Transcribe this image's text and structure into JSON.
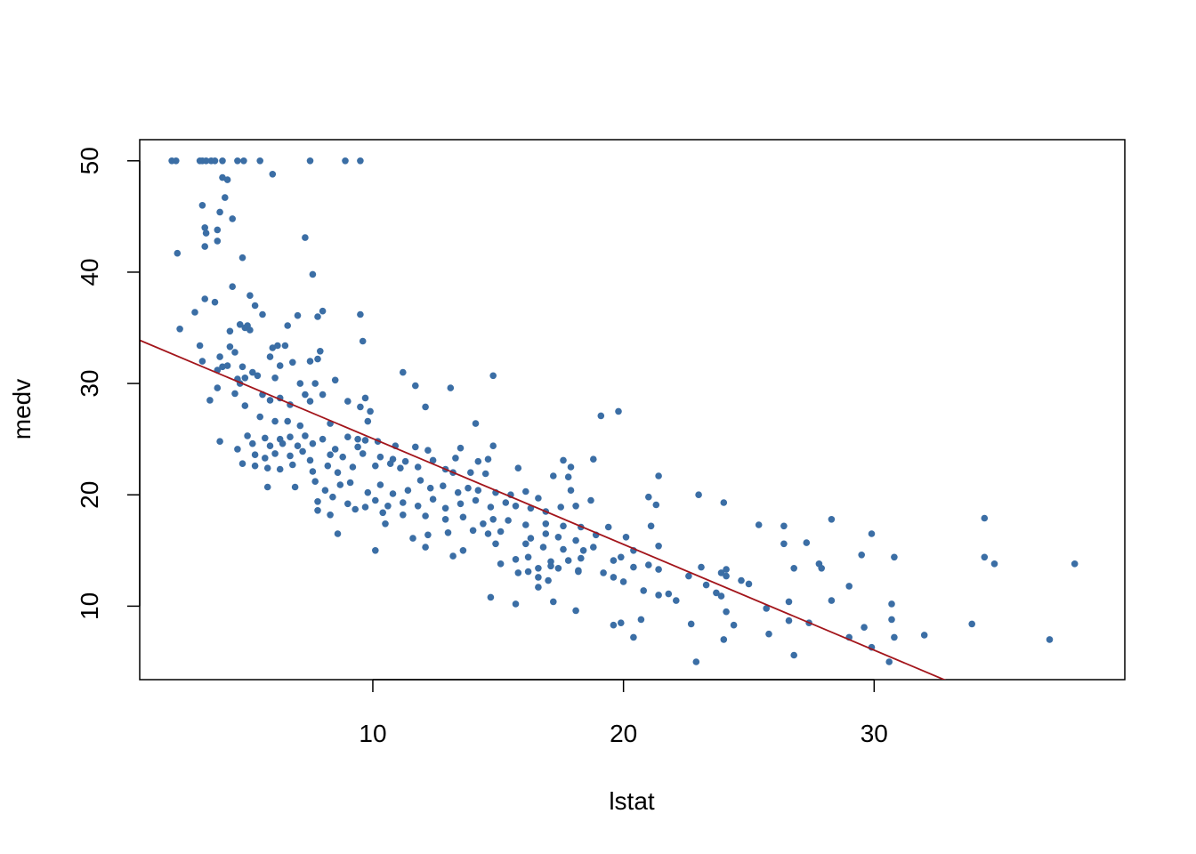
{
  "chart_data": {
    "type": "scatter",
    "title": "",
    "xlabel": "lstat",
    "ylabel": "medv",
    "xlim": [
      0.7,
      40
    ],
    "ylim": [
      3.4,
      51.9
    ],
    "xticks": [
      10,
      20,
      30
    ],
    "yticks": [
      10,
      20,
      30,
      40,
      50
    ],
    "grid": false,
    "point_color": "#3b6ea5",
    "line_color": "#a3151b",
    "fit_line": {
      "intercept": 34.55,
      "slope": -0.95
    },
    "points": [
      [
        1.98,
        50
      ],
      [
        2.15,
        50
      ],
      [
        3.1,
        50
      ],
      [
        3.2,
        50
      ],
      [
        3.35,
        50
      ],
      [
        3.55,
        50
      ],
      [
        3.7,
        50
      ],
      [
        4.0,
        50
      ],
      [
        4.6,
        50
      ],
      [
        4.85,
        50
      ],
      [
        5.5,
        50
      ],
      [
        7.5,
        50
      ],
      [
        8.9,
        50
      ],
      [
        9.5,
        50
      ],
      [
        6.0,
        48.8
      ],
      [
        4.0,
        48.5
      ],
      [
        4.2,
        48.3
      ],
      [
        4.1,
        46.7
      ],
      [
        3.2,
        46.0
      ],
      [
        3.9,
        45.4
      ],
      [
        4.4,
        44.8
      ],
      [
        3.3,
        44.0
      ],
      [
        3.35,
        43.5
      ],
      [
        3.8,
        43.8
      ],
      [
        3.8,
        42.8
      ],
      [
        3.3,
        42.3
      ],
      [
        7.3,
        43.1
      ],
      [
        2.2,
        41.7
      ],
      [
        4.8,
        41.3
      ],
      [
        7.6,
        39.8
      ],
      [
        4.4,
        38.7
      ],
      [
        5.1,
        37.9
      ],
      [
        3.3,
        37.6
      ],
      [
        3.7,
        37.3
      ],
      [
        5.3,
        37.0
      ],
      [
        2.9,
        36.4
      ],
      [
        5.6,
        36.2
      ],
      [
        7.0,
        36.1
      ],
      [
        8.0,
        36.5
      ],
      [
        7.8,
        36.0
      ],
      [
        9.5,
        36.2
      ],
      [
        2.3,
        34.9
      ],
      [
        4.7,
        35.3
      ],
      [
        5.0,
        35.2
      ],
      [
        6.6,
        35.2
      ],
      [
        4.9,
        35.0
      ],
      [
        5.1,
        34.8
      ],
      [
        4.3,
        34.7
      ],
      [
        3.1,
        33.4
      ],
      [
        4.3,
        33.3
      ],
      [
        6.0,
        33.2
      ],
      [
        6.2,
        33.4
      ],
      [
        6.5,
        33.4
      ],
      [
        9.6,
        33.8
      ],
      [
        4.5,
        32.8
      ],
      [
        7.9,
        32.9
      ],
      [
        3.9,
        32.4
      ],
      [
        5.9,
        32.4
      ],
      [
        7.5,
        32.0
      ],
      [
        7.8,
        32.2
      ],
      [
        3.2,
        32.0
      ],
      [
        4.0,
        31.5
      ],
      [
        4.2,
        31.6
      ],
      [
        4.8,
        31.5
      ],
      [
        6.3,
        31.6
      ],
      [
        6.8,
        31.9
      ],
      [
        5.2,
        31.0
      ],
      [
        3.8,
        31.2
      ],
      [
        4.6,
        30.4
      ],
      [
        4.7,
        30.0
      ],
      [
        4.9,
        30.5
      ],
      [
        5.4,
        30.7
      ],
      [
        6.1,
        30.5
      ],
      [
        7.1,
        30.0
      ],
      [
        7.7,
        30.0
      ],
      [
        8.5,
        30.3
      ],
      [
        11.2,
        31.0
      ],
      [
        11.7,
        29.8
      ],
      [
        14.8,
        30.7
      ],
      [
        13.1,
        29.6
      ],
      [
        3.8,
        29.6
      ],
      [
        4.5,
        29.1
      ],
      [
        5.6,
        29.0
      ],
      [
        6.3,
        28.7
      ],
      [
        7.3,
        29.0
      ],
      [
        8.0,
        29.0
      ],
      [
        3.5,
        28.5
      ],
      [
        4.9,
        28.0
      ],
      [
        5.9,
        28.5
      ],
      [
        6.7,
        28.1
      ],
      [
        7.5,
        28.4
      ],
      [
        9.0,
        28.4
      ],
      [
        9.7,
        28.7
      ],
      [
        9.5,
        27.9
      ],
      [
        9.9,
        27.5
      ],
      [
        12.1,
        27.9
      ],
      [
        19.1,
        27.1
      ],
      [
        19.8,
        27.5
      ],
      [
        5.5,
        27.0
      ],
      [
        6.1,
        26.6
      ],
      [
        6.6,
        26.6
      ],
      [
        7.1,
        26.2
      ],
      [
        8.3,
        26.4
      ],
      [
        9.8,
        26.6
      ],
      [
        14.1,
        26.4
      ],
      [
        5.0,
        25.3
      ],
      [
        5.7,
        25.1
      ],
      [
        6.3,
        25.0
      ],
      [
        6.7,
        25.2
      ],
      [
        7.3,
        25.3
      ],
      [
        8.0,
        25.0
      ],
      [
        9.0,
        25.2
      ],
      [
        9.4,
        25.0
      ],
      [
        9.7,
        24.9
      ],
      [
        3.9,
        24.8
      ],
      [
        4.6,
        24.1
      ],
      [
        5.2,
        24.6
      ],
      [
        5.9,
        24.4
      ],
      [
        6.4,
        24.6
      ],
      [
        7.0,
        24.4
      ],
      [
        7.6,
        24.6
      ],
      [
        8.5,
        24.1
      ],
      [
        9.4,
        24.3
      ],
      [
        10.2,
        24.8
      ],
      [
        10.9,
        24.4
      ],
      [
        11.7,
        24.3
      ],
      [
        12.2,
        24.0
      ],
      [
        13.5,
        24.2
      ],
      [
        14.8,
        24.4
      ],
      [
        5.3,
        23.6
      ],
      [
        5.7,
        23.3
      ],
      [
        6.1,
        23.7
      ],
      [
        6.7,
        23.5
      ],
      [
        7.2,
        23.9
      ],
      [
        7.5,
        23.1
      ],
      [
        8.3,
        23.6
      ],
      [
        8.8,
        23.4
      ],
      [
        9.6,
        23.7
      ],
      [
        10.3,
        23.4
      ],
      [
        10.8,
        23.2
      ],
      [
        11.3,
        23.0
      ],
      [
        12.4,
        23.1
      ],
      [
        13.3,
        23.3
      ],
      [
        14.2,
        23.0
      ],
      [
        14.6,
        23.2
      ],
      [
        17.6,
        23.1
      ],
      [
        18.8,
        23.2
      ],
      [
        4.8,
        22.8
      ],
      [
        5.3,
        22.6
      ],
      [
        5.8,
        22.4
      ],
      [
        6.3,
        22.3
      ],
      [
        6.8,
        22.7
      ],
      [
        7.6,
        22.1
      ],
      [
        8.2,
        22.6
      ],
      [
        8.6,
        22.0
      ],
      [
        9.2,
        22.5
      ],
      [
        10.1,
        22.6
      ],
      [
        10.7,
        22.8
      ],
      [
        11.1,
        22.4
      ],
      [
        11.8,
        22.5
      ],
      [
        12.9,
        22.3
      ],
      [
        13.2,
        22.0
      ],
      [
        13.9,
        22.0
      ],
      [
        14.5,
        21.9
      ],
      [
        15.8,
        22.4
      ],
      [
        17.2,
        21.7
      ],
      [
        17.9,
        22.5
      ],
      [
        21.4,
        21.7
      ],
      [
        5.8,
        20.7
      ],
      [
        6.9,
        20.7
      ],
      [
        7.7,
        21.2
      ],
      [
        8.1,
        20.4
      ],
      [
        8.7,
        20.9
      ],
      [
        9.1,
        21.1
      ],
      [
        9.8,
        20.2
      ],
      [
        10.3,
        20.9
      ],
      [
        10.8,
        20.1
      ],
      [
        11.4,
        20.4
      ],
      [
        11.9,
        21.3
      ],
      [
        12.3,
        20.6
      ],
      [
        12.8,
        20.8
      ],
      [
        13.4,
        20.2
      ],
      [
        13.8,
        20.6
      ],
      [
        14.2,
        20.4
      ],
      [
        14.9,
        20.2
      ],
      [
        15.5,
        20.0
      ],
      [
        16.1,
        20.3
      ],
      [
        16.6,
        19.7
      ],
      [
        17.8,
        21.6
      ],
      [
        17.9,
        20.4
      ],
      [
        21.0,
        19.8
      ],
      [
        23.0,
        20.0
      ],
      [
        7.8,
        19.4
      ],
      [
        8.4,
        19.8
      ],
      [
        9.0,
        19.2
      ],
      [
        9.7,
        18.9
      ],
      [
        10.1,
        19.5
      ],
      [
        10.6,
        19.0
      ],
      [
        11.2,
        19.3
      ],
      [
        11.8,
        19.0
      ],
      [
        12.4,
        19.6
      ],
      [
        12.9,
        18.8
      ],
      [
        13.5,
        19.2
      ],
      [
        14.1,
        19.5
      ],
      [
        14.7,
        18.9
      ],
      [
        15.3,
        19.3
      ],
      [
        15.7,
        19.0
      ],
      [
        16.3,
        18.8
      ],
      [
        16.9,
        18.5
      ],
      [
        17.5,
        18.9
      ],
      [
        18.1,
        19.0
      ],
      [
        18.7,
        19.5
      ],
      [
        21.3,
        19.1
      ],
      [
        24.0,
        19.3
      ],
      [
        7.8,
        18.6
      ],
      [
        8.3,
        18.2
      ],
      [
        9.3,
        18.7
      ],
      [
        10.4,
        18.4
      ],
      [
        11.2,
        18.2
      ],
      [
        12.1,
        18.1
      ],
      [
        12.9,
        17.8
      ],
      [
        13.6,
        18.0
      ],
      [
        14.4,
        17.4
      ],
      [
        14.8,
        17.8
      ],
      [
        15.4,
        17.7
      ],
      [
        16.1,
        17.3
      ],
      [
        16.9,
        17.4
      ],
      [
        17.6,
        17.2
      ],
      [
        18.3,
        17.1
      ],
      [
        19.4,
        17.1
      ],
      [
        21.1,
        17.2
      ],
      [
        25.4,
        17.3
      ],
      [
        26.4,
        17.2
      ],
      [
        28.3,
        17.8
      ],
      [
        34.4,
        17.9
      ],
      [
        8.6,
        16.5
      ],
      [
        10.5,
        17.4
      ],
      [
        11.6,
        16.1
      ],
      [
        12.2,
        16.4
      ],
      [
        13.0,
        16.6
      ],
      [
        14.0,
        16.8
      ],
      [
        14.6,
        16.5
      ],
      [
        15.1,
        16.7
      ],
      [
        16.3,
        16.1
      ],
      [
        16.9,
        16.5
      ],
      [
        17.4,
        16.2
      ],
      [
        18.1,
        15.9
      ],
      [
        18.9,
        16.4
      ],
      [
        20.1,
        16.2
      ],
      [
        29.9,
        16.5
      ],
      [
        10.1,
        15.0
      ],
      [
        12.1,
        15.3
      ],
      [
        13.6,
        15.0
      ],
      [
        14.9,
        15.6
      ],
      [
        16.1,
        15.6
      ],
      [
        16.8,
        15.3
      ],
      [
        17.6,
        15.1
      ],
      [
        18.4,
        15.0
      ],
      [
        18.8,
        15.3
      ],
      [
        20.4,
        15.0
      ],
      [
        21.4,
        15.4
      ],
      [
        26.4,
        15.6
      ],
      [
        27.3,
        15.7
      ],
      [
        13.2,
        14.5
      ],
      [
        15.7,
        14.2
      ],
      [
        16.2,
        14.4
      ],
      [
        17.1,
        14.0
      ],
      [
        17.8,
        14.1
      ],
      [
        18.3,
        14.3
      ],
      [
        19.6,
        14.1
      ],
      [
        19.9,
        14.4
      ],
      [
        29.5,
        14.6
      ],
      [
        30.8,
        14.4
      ],
      [
        34.4,
        14.4
      ],
      [
        15.1,
        13.8
      ],
      [
        16.2,
        13.1
      ],
      [
        16.6,
        13.4
      ],
      [
        17.1,
        13.6
      ],
      [
        17.4,
        13.4
      ],
      [
        18.2,
        13.2
      ],
      [
        19.2,
        13.0
      ],
      [
        19.6,
        12.6
      ],
      [
        20.4,
        13.5
      ],
      [
        21.0,
        13.7
      ],
      [
        21.4,
        13.3
      ],
      [
        22.6,
        12.7
      ],
      [
        23.1,
        13.5
      ],
      [
        23.9,
        13.0
      ],
      [
        24.1,
        13.3
      ],
      [
        26.8,
        13.4
      ],
      [
        27.8,
        13.8
      ],
      [
        34.8,
        13.8
      ],
      [
        38.0,
        13.8
      ],
      [
        15.8,
        13.0
      ],
      [
        16.6,
        12.6
      ],
      [
        17.0,
        12.3
      ],
      [
        18.2,
        13.1
      ],
      [
        20.0,
        12.2
      ],
      [
        21.8,
        11.1
      ],
      [
        23.3,
        11.9
      ],
      [
        24.1,
        12.7
      ],
      [
        24.7,
        12.3
      ],
      [
        25.0,
        12.0
      ],
      [
        27.9,
        13.4
      ],
      [
        29.0,
        11.8
      ],
      [
        14.7,
        10.8
      ],
      [
        15.7,
        10.2
      ],
      [
        16.6,
        11.7
      ],
      [
        17.2,
        10.4
      ],
      [
        18.1,
        9.6
      ],
      [
        20.8,
        11.4
      ],
      [
        21.4,
        11.0
      ],
      [
        22.1,
        10.5
      ],
      [
        23.7,
        11.2
      ],
      [
        23.9,
        10.9
      ],
      [
        26.6,
        10.4
      ],
      [
        28.3,
        10.5
      ],
      [
        30.7,
        10.2
      ],
      [
        19.6,
        8.3
      ],
      [
        19.9,
        8.5
      ],
      [
        20.4,
        7.2
      ],
      [
        20.7,
        8.8
      ],
      [
        22.7,
        8.4
      ],
      [
        24.1,
        9.5
      ],
      [
        24.4,
        8.3
      ],
      [
        25.7,
        9.8
      ],
      [
        26.6,
        8.7
      ],
      [
        27.4,
        8.5
      ],
      [
        29.6,
        8.1
      ],
      [
        30.7,
        8.8
      ],
      [
        33.9,
        8.4
      ],
      [
        24.0,
        7.0
      ],
      [
        25.8,
        7.5
      ],
      [
        29.0,
        7.2
      ],
      [
        30.8,
        7.2
      ],
      [
        32.0,
        7.4
      ],
      [
        37.0,
        7.0
      ],
      [
        22.9,
        5.0
      ],
      [
        26.8,
        5.6
      ],
      [
        29.9,
        6.3
      ],
      [
        30.6,
        5.0
      ]
    ]
  }
}
